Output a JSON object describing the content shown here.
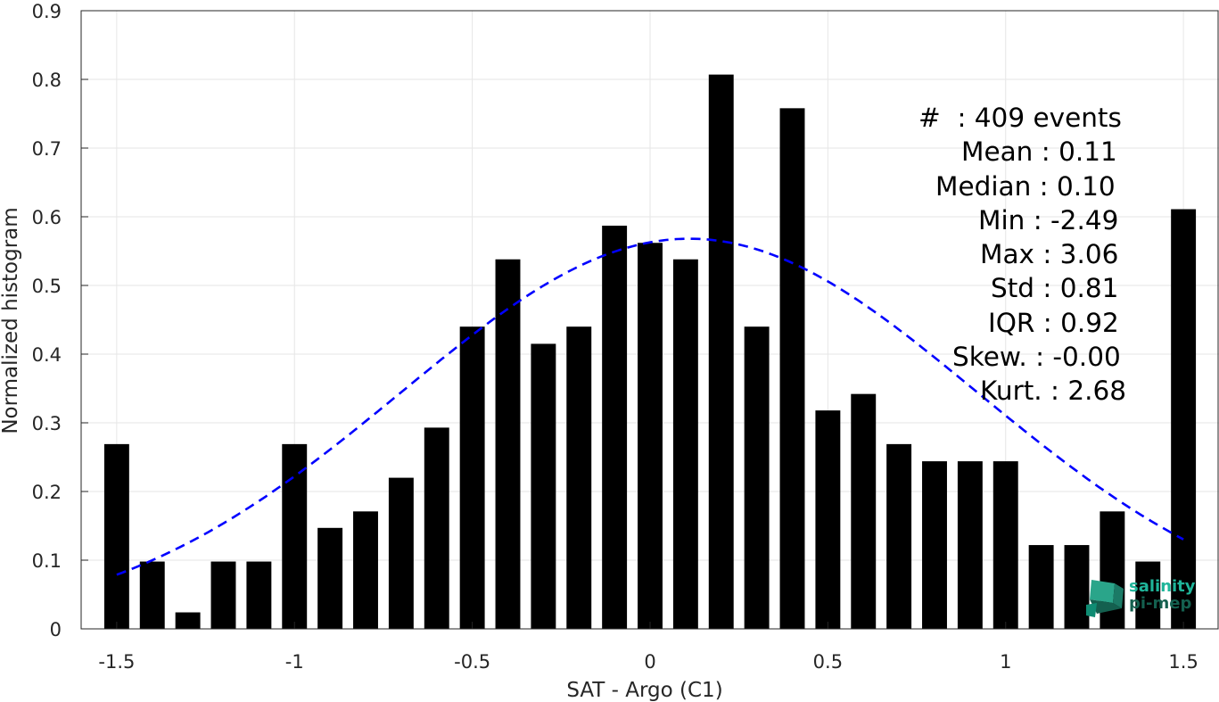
{
  "chart_data": {
    "type": "bar",
    "xlabel": "SAT - Argo (C1)",
    "ylabel": "Normalized histogram",
    "xlim": [
      -1.6,
      1.6
    ],
    "ylim": [
      0,
      0.9
    ],
    "xticks": [
      -1.5,
      -1,
      -0.5,
      0,
      0.5,
      1,
      1.5
    ],
    "xtick_labels": [
      "-1.5",
      "-1",
      "-0.5",
      "0",
      "0.5",
      "1",
      "1.5"
    ],
    "yticks": [
      0,
      0.1,
      0.2,
      0.3,
      0.4,
      0.5,
      0.6,
      0.7,
      0.8,
      0.9
    ],
    "ytick_labels": [
      "0",
      "0.1",
      "0.2",
      "0.3",
      "0.4",
      "0.5",
      "0.6",
      "0.7",
      "0.8",
      "0.9"
    ],
    "grid": true,
    "bar_color": "#000000",
    "bar_width": 0.07,
    "bin_centers": [
      -1.5,
      -1.4,
      -1.3,
      -1.2,
      -1.1,
      -1.0,
      -0.9,
      -0.8,
      -0.7,
      -0.6,
      -0.5,
      -0.4,
      -0.3,
      -0.2,
      -0.1,
      0.0,
      0.1,
      0.2,
      0.3,
      0.4,
      0.5,
      0.6,
      0.7,
      0.8,
      0.9,
      1.0,
      1.1,
      1.2,
      1.3,
      1.4,
      1.5
    ],
    "values": [
      0.269,
      0.098,
      0.024,
      0.098,
      0.098,
      0.269,
      0.147,
      0.171,
      0.22,
      0.293,
      0.44,
      0.538,
      0.415,
      0.44,
      0.587,
      0.562,
      0.538,
      0.807,
      0.44,
      0.758,
      0.318,
      0.342,
      0.269,
      0.244,
      0.244,
      0.244,
      0.122,
      0.122,
      0.171,
      0.098,
      0.611
    ],
    "fit_curve": {
      "type": "gaussian",
      "mean": 0.11,
      "std": 0.81,
      "color": "#0000ff",
      "style": "dashed",
      "x_range": [
        -1.5,
        1.5
      ],
      "peak": 0.568
    },
    "stats": [
      "#  : 409 events",
      "Mean : 0.11",
      "Median : 0.10",
      "Min : -2.49",
      "Max : 3.06",
      "Std : 0.81",
      "IQR : 0.92",
      "Skew. : -0.00",
      "Kurt. : 2.68"
    ]
  },
  "logo": {
    "line1": "salinity",
    "line2": "pi-mep",
    "color": "#1fb59a"
  }
}
